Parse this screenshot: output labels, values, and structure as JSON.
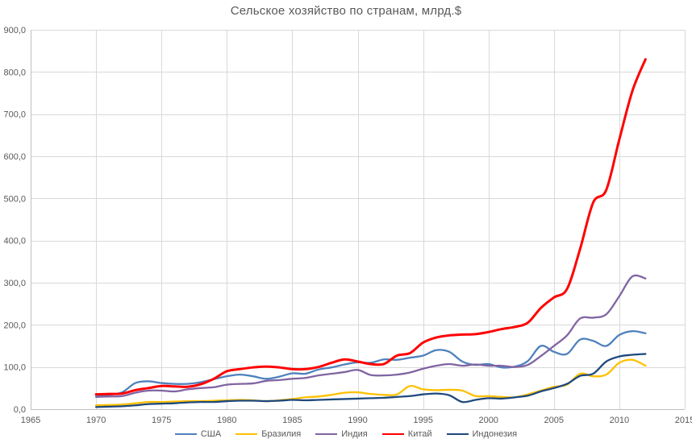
{
  "chart_data": {
    "type": "line",
    "title": "Сельское хозяйство по странам, млрд.$",
    "x": [
      1970,
      1971,
      1972,
      1973,
      1974,
      1975,
      1976,
      1977,
      1978,
      1979,
      1980,
      1981,
      1982,
      1983,
      1984,
      1985,
      1986,
      1987,
      1988,
      1989,
      1990,
      1991,
      1992,
      1993,
      1994,
      1995,
      1996,
      1997,
      1998,
      1999,
      2000,
      2001,
      2002,
      2003,
      2004,
      2005,
      2006,
      2007,
      2008,
      2009,
      2010,
      2011,
      2012
    ],
    "series": [
      {
        "name": "США",
        "key": "usa",
        "color": "#4F81BD",
        "values": [
          33,
          34,
          40,
          62,
          66,
          62,
          60,
          60,
          64,
          71,
          78,
          82,
          78,
          72,
          77,
          85,
          84,
          94,
          99,
          106,
          111,
          110,
          118,
          117,
          122,
          127,
          140,
          136,
          113,
          105,
          107,
          99,
          101,
          114,
          150,
          136,
          131,
          165,
          162,
          150,
          176,
          185,
          180
        ]
      },
      {
        "name": "Бразилия",
        "key": "brazil",
        "color": "#FFC000",
        "values": [
          9,
          10,
          11,
          14,
          17,
          17,
          18,
          19,
          19,
          20,
          21,
          22,
          21,
          19,
          21,
          24,
          28,
          30,
          34,
          39,
          40,
          36,
          34,
          35,
          55,
          47,
          45,
          46,
          44,
          31,
          31,
          29,
          28,
          35,
          44,
          53,
          58,
          84,
          78,
          82,
          110,
          117,
          103
        ]
      },
      {
        "name": "Индия",
        "key": "india",
        "color": "#8064A2",
        "values": [
          29,
          30,
          31,
          39,
          44,
          44,
          42,
          47,
          50,
          52,
          58,
          60,
          61,
          67,
          69,
          72,
          74,
          80,
          84,
          88,
          93,
          81,
          80,
          82,
          87,
          96,
          103,
          107,
          103,
          106,
          103,
          103,
          100,
          105,
          126,
          150,
          175,
          215,
          217,
          225,
          268,
          315,
          310
        ]
      },
      {
        "name": "Китай",
        "key": "china",
        "color": "#FF0000",
        "values": [
          35,
          36,
          37,
          45,
          50,
          55,
          54,
          53,
          59,
          72,
          90,
          95,
          99,
          101,
          99,
          95,
          95,
          100,
          110,
          118,
          113,
          107,
          107,
          127,
          133,
          158,
          170,
          175,
          177,
          178,
          183,
          190,
          195,
          205,
          240,
          265,
          285,
          380,
          490,
          520,
          640,
          755,
          830
        ]
      },
      {
        "name": "Индонезия",
        "key": "indonesia",
        "color": "#1F497D",
        "values": [
          5,
          6,
          7,
          9,
          12,
          13,
          14,
          16,
          17,
          17,
          19,
          20,
          20,
          19,
          20,
          22,
          21,
          22,
          23,
          24,
          25,
          26,
          27,
          29,
          31,
          35,
          37,
          33,
          17,
          22,
          26,
          25,
          28,
          32,
          42,
          50,
          60,
          79,
          84,
          113,
          125,
          129,
          131
        ]
      }
    ],
    "xlabel": "",
    "ylabel": "",
    "x_axis": {
      "min": 1965,
      "max": 2015,
      "tick_labels": [
        "1965",
        "1970",
        "1975",
        "1980",
        "1985",
        "1990",
        "1995",
        "2000",
        "2005",
        "2010",
        "2015"
      ]
    },
    "y_axis": {
      "min": 0,
      "max": 900,
      "tick_labels": [
        "0,0",
        "100,0",
        "200,0",
        "300,0",
        "400,0",
        "500,0",
        "600,0",
        "700,0",
        "800,0",
        "900,0"
      ]
    },
    "grid": true,
    "legend_position": "bottom",
    "colors": {
      "grid": "#D9D9D9",
      "axis": "#BFBFBF",
      "text": "#595959",
      "title": "#595959",
      "background": "#FFFFFF"
    }
  }
}
